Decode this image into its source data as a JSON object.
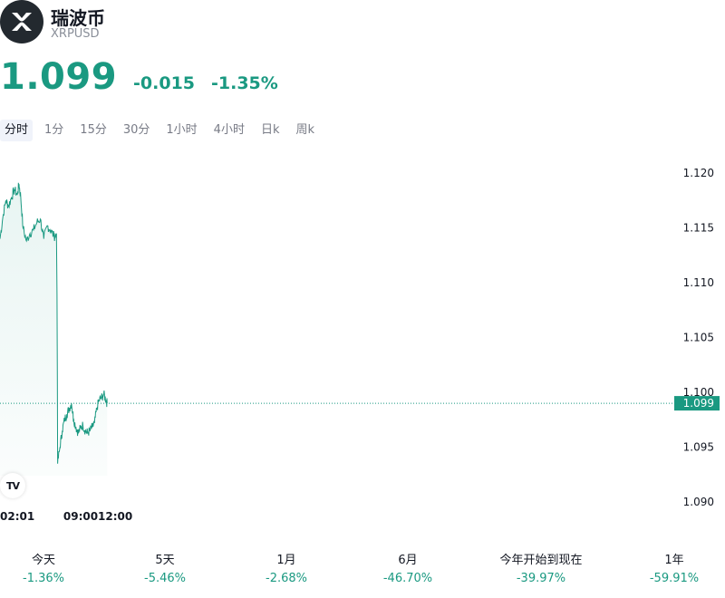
{
  "header": {
    "name": "瑞波币",
    "ticker": "XRPUSD",
    "logo_icon": "xrp-logo-icon"
  },
  "quote": {
    "price": "1.099",
    "change": "-0.015",
    "change_percent": "-1.35%",
    "color": "#1a9981"
  },
  "tabs": [
    {
      "label": "分时",
      "active": true
    },
    {
      "label": "1分",
      "active": false
    },
    {
      "label": "15分",
      "active": false
    },
    {
      "label": "30分",
      "active": false
    },
    {
      "label": "1小时",
      "active": false
    },
    {
      "label": "4小时",
      "active": false
    },
    {
      "label": "日k",
      "active": false
    },
    {
      "label": "周k",
      "active": false
    }
  ],
  "chart_data": {
    "type": "area",
    "y_ticks": [
      "1.120",
      "1.115",
      "1.110",
      "1.105",
      "1.100",
      "1.095",
      "1.090"
    ],
    "x_ticks": [
      {
        "label": "02:01",
        "hour": 2.0
      },
      {
        "label": "09:00",
        "hour": 9.0
      },
      {
        "label": "12:00",
        "hour": 12.0
      }
    ],
    "ylim": [
      1.09,
      1.12
    ],
    "xlim_hours": [
      2.0,
      16.0
    ],
    "current_price_label": "1.099",
    "current_price": 1.099,
    "line_color": "#1a9981",
    "series": [
      {
        "values": [
          [
            2.0,
            1.114
          ],
          [
            2.25,
            1.116
          ],
          [
            2.5,
            1.1175
          ],
          [
            2.75,
            1.117
          ],
          [
            3.0,
            1.1178
          ],
          [
            3.25,
            1.1185
          ],
          [
            3.5,
            1.118
          ],
          [
            3.65,
            1.119
          ],
          [
            3.8,
            1.1178
          ],
          [
            4.0,
            1.115
          ],
          [
            4.3,
            1.1138
          ],
          [
            4.6,
            1.1145
          ],
          [
            4.9,
            1.1148
          ],
          [
            5.2,
            1.1155
          ],
          [
            5.5,
            1.1158
          ],
          [
            5.8,
            1.114
          ],
          [
            6.1,
            1.1152
          ],
          [
            6.4,
            1.1148
          ],
          [
            6.7,
            1.1142
          ],
          [
            6.9,
            1.1145
          ],
          [
            6.95,
            1.109
          ],
          [
            7.0,
            1.0935
          ],
          [
            7.2,
            1.095
          ],
          [
            7.4,
            1.0965
          ],
          [
            7.6,
            1.0975
          ],
          [
            7.8,
            1.098
          ],
          [
            8.0,
            1.0985
          ],
          [
            8.2,
            1.099
          ],
          [
            8.4,
            1.0975
          ],
          [
            8.6,
            1.0968
          ],
          [
            8.8,
            1.0963
          ],
          [
            9.0,
            1.0968
          ],
          [
            9.2,
            1.097
          ],
          [
            9.4,
            1.0965
          ],
          [
            9.6,
            1.0963
          ],
          [
            9.8,
            1.0965
          ],
          [
            10.0,
            1.0968
          ],
          [
            10.2,
            1.0972
          ],
          [
            10.4,
            1.0985
          ],
          [
            10.6,
            1.0993
          ],
          [
            10.8,
            1.0995
          ],
          [
            11.0,
            1.0998
          ],
          [
            11.2,
            1.0993
          ],
          [
            11.3,
            1.099
          ]
        ]
      }
    ]
  },
  "performance": [
    {
      "label": "今天",
      "value": "-1.36%"
    },
    {
      "label": "5天",
      "value": "-5.46%"
    },
    {
      "label": "1月",
      "value": "-2.68%"
    },
    {
      "label": "6月",
      "value": "-46.70%"
    },
    {
      "label": "今年开始到现在",
      "value": "-39.97%"
    },
    {
      "label": "1年",
      "value": "-59.91%"
    }
  ]
}
